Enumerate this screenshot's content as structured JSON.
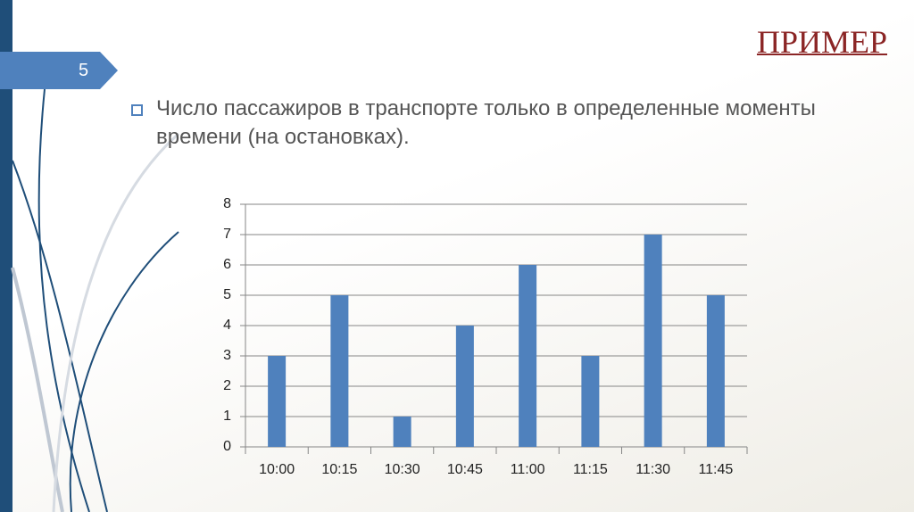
{
  "slide_number": "5",
  "title": "ПРИМЕР",
  "bullet": "Число пассажиров в транспорте только в определенные моменты времени (на остановках).",
  "chart_data": {
    "type": "bar",
    "categories": [
      "10:00",
      "10:15",
      "10:30",
      "10:45",
      "11:00",
      "11:15",
      "11:30",
      "11:45"
    ],
    "values": [
      3,
      5,
      1,
      4,
      6,
      3,
      7,
      5
    ],
    "color": "#4f81bd",
    "ylim": [
      0,
      8
    ],
    "yticks": [
      0,
      1,
      2,
      3,
      4,
      5,
      6,
      7,
      8
    ],
    "grid": true
  }
}
